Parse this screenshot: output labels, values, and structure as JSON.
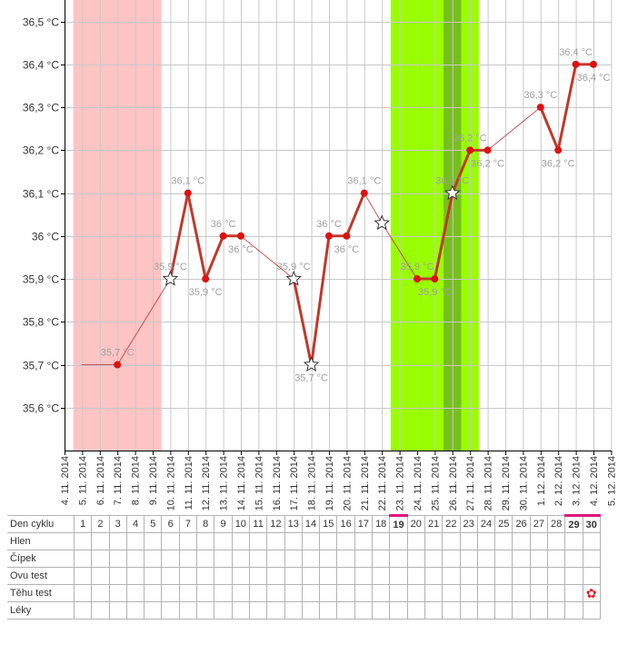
{
  "chart_data": {
    "type": "line",
    "x_labels": [
      "4. 11. 2014",
      "5. 11. 2014",
      "6. 11. 2014",
      "7. 11. 2014",
      "8. 11. 2014",
      "9. 11. 2014",
      "10. 11. 2014",
      "11. 11. 2014",
      "12. 11. 2014",
      "13. 11. 2014",
      "14. 11. 2014",
      "15. 11. 2014",
      "16. 11. 2014",
      "17. 11. 2014",
      "18. 11. 2014",
      "19. 11. 2014",
      "20. 11. 2014",
      "21. 11. 2014",
      "22. 11. 2014",
      "23. 11. 2014",
      "24. 11. 2014",
      "25. 11. 2014",
      "26. 11. 2014",
      "27. 11. 2014",
      "28. 11. 2014",
      "29. 11. 2014",
      "30. 11. 2014",
      "1. 12. 2014",
      "2. 12. 2014",
      "3. 12. 2014",
      "4. 12. 2014",
      "5. 12. 2014"
    ],
    "y_ticks": [
      {
        "value": 35.6,
        "label": "35,6 °C"
      },
      {
        "value": 35.7,
        "label": "35,7 °C"
      },
      {
        "value": 35.8,
        "label": "35,8 °C"
      },
      {
        "value": 35.9,
        "label": "35,9 °C"
      },
      {
        "value": 36.0,
        "label": "36 °C"
      },
      {
        "value": 36.1,
        "label": "36,1 °C"
      },
      {
        "value": 36.2,
        "label": "36,2 °C"
      },
      {
        "value": 36.3,
        "label": "36,3 °C"
      },
      {
        "value": 36.4,
        "label": "36,4 °C"
      },
      {
        "value": 36.5,
        "label": "36,5 °C"
      }
    ],
    "ylim": [
      35.5,
      36.55
    ],
    "grid": true,
    "points": [
      {
        "date": "5. 11. 2014",
        "y": 35.7,
        "marker": "none",
        "label": ""
      },
      {
        "date": "7. 11. 2014",
        "y": 35.7,
        "marker": "dot",
        "label": "35,7 °C",
        "label_pos": "above"
      },
      {
        "date": "10. 11. 2014",
        "y": 35.9,
        "marker": "star",
        "label": "35,9 °C",
        "label_pos": "above"
      },
      {
        "date": "11. 11. 2014",
        "y": 36.1,
        "marker": "dot",
        "label": "36,1 °C",
        "label_pos": "above"
      },
      {
        "date": "12. 11. 2014",
        "y": 35.9,
        "marker": "dot",
        "label": "35,9 °C",
        "label_pos": "below"
      },
      {
        "date": "13. 11. 2014",
        "y": 36.0,
        "marker": "dot",
        "label": "36 °C",
        "label_pos": "above"
      },
      {
        "date": "14. 11. 2014",
        "y": 36.0,
        "marker": "dot",
        "label": "36 °C",
        "label_pos": "below"
      },
      {
        "date": "17. 11. 2014",
        "y": 35.9,
        "marker": "star",
        "label": "35,9 °C",
        "label_pos": "above"
      },
      {
        "date": "18. 11. 2014",
        "y": 35.7,
        "marker": "star",
        "label": "35,7 °C",
        "label_pos": "below"
      },
      {
        "date": "19. 11. 2014",
        "y": 36.0,
        "marker": "dot",
        "label": "36 °C",
        "label_pos": "above"
      },
      {
        "date": "20. 11. 2014",
        "y": 36.0,
        "marker": "dot",
        "label": "36 °C",
        "label_pos": "below"
      },
      {
        "date": "21. 11. 2014",
        "y": 36.1,
        "marker": "dot",
        "label": "36,1 °C",
        "label_pos": "above"
      },
      {
        "date": "22. 11. 2014",
        "y": 36.03,
        "marker": "star",
        "label": "",
        "label_pos": "above"
      },
      {
        "date": "24. 11. 2014",
        "y": 35.9,
        "marker": "dot",
        "label": "35,9 °C",
        "label_pos": "above"
      },
      {
        "date": "25. 11. 2014",
        "y": 35.9,
        "marker": "dot",
        "label": "35,9 °C",
        "label_pos": "below"
      },
      {
        "date": "26. 11. 2014",
        "y": 36.1,
        "marker": "star",
        "label": "36,1 °C",
        "label_pos": "above"
      },
      {
        "date": "27. 11. 2014",
        "y": 36.2,
        "marker": "dot",
        "label": "36,2 °C",
        "label_pos": "above"
      },
      {
        "date": "28. 11. 2014",
        "y": 36.2,
        "marker": "dot",
        "label": "36,2 °C",
        "label_pos": "below"
      },
      {
        "date": "1. 12. 2014",
        "y": 36.3,
        "marker": "dot",
        "label": "36,3 °C",
        "label_pos": "above"
      },
      {
        "date": "2. 12. 2014",
        "y": 36.2,
        "marker": "dot",
        "label": "36,2 °C",
        "label_pos": "below"
      },
      {
        "date": "3. 12. 2014",
        "y": 36.4,
        "marker": "dot",
        "label": "36,4 °C",
        "label_pos": "above"
      },
      {
        "date": "4. 12. 2014",
        "y": 36.4,
        "marker": "dot",
        "label": "36,4 °C",
        "label_pos": "below"
      }
    ],
    "segments": [
      {
        "from": 0,
        "to": 1,
        "style": "dotted"
      },
      {
        "from": 1,
        "to": 2,
        "style": "dotted"
      },
      {
        "from": 2,
        "to": 3,
        "style": "solid"
      },
      {
        "from": 3,
        "to": 4,
        "style": "solid"
      },
      {
        "from": 4,
        "to": 5,
        "style": "solid"
      },
      {
        "from": 5,
        "to": 6,
        "style": "solid"
      },
      {
        "from": 6,
        "to": 7,
        "style": "dotted"
      },
      {
        "from": 7,
        "to": 8,
        "style": "solid"
      },
      {
        "from": 8,
        "to": 9,
        "style": "solid"
      },
      {
        "from": 9,
        "to": 10,
        "style": "solid"
      },
      {
        "from": 10,
        "to": 11,
        "style": "solid"
      },
      {
        "from": 11,
        "to": 12,
        "style": "dotted"
      },
      {
        "from": 12,
        "to": 13,
        "style": "dotted"
      },
      {
        "from": 13,
        "to": 14,
        "style": "solid"
      },
      {
        "from": 14,
        "to": 15,
        "style": "solid"
      },
      {
        "from": 15,
        "to": 16,
        "style": "solid"
      },
      {
        "from": 16,
        "to": 17,
        "style": "solid"
      },
      {
        "from": 17,
        "to": 18,
        "style": "dotted"
      },
      {
        "from": 18,
        "to": 19,
        "style": "solid"
      },
      {
        "from": 19,
        "to": 20,
        "style": "solid"
      },
      {
        "from": 20,
        "to": 21,
        "style": "solid"
      }
    ],
    "bands": [
      {
        "from": "5. 11. 2014",
        "to": "9. 11. 2014",
        "color": "#ffc4c4"
      },
      {
        "from": "23. 11. 2014",
        "to": "27. 11. 2014",
        "color": "#99ff00"
      },
      {
        "from": "26. 11. 2014",
        "to": "26. 11. 2014",
        "color": "#77bf1f"
      }
    ],
    "colors": {
      "line": "#c0392b",
      "dotted_line": "#c44040",
      "point": "#dd1111",
      "label": "#a0a0a0",
      "grid": "#c8c8c8",
      "axis": "#000000"
    }
  },
  "cycle_table": {
    "rows": [
      {
        "label": "Den cyklu",
        "cells": [
          "1",
          "2",
          "3",
          "4",
          "5",
          "6",
          "7",
          "8",
          "9",
          "10",
          "11",
          "12",
          "13",
          "14",
          "15",
          "16",
          "17",
          "18",
          "19",
          "20",
          "21",
          "22",
          "23",
          "24",
          "25",
          "26",
          "27",
          "28",
          "29",
          "30"
        ],
        "marked": [
          18,
          28,
          29
        ]
      },
      {
        "label": "Hlen",
        "cells": []
      },
      {
        "label": "Čípek",
        "cells": []
      },
      {
        "label": "Ovu test",
        "cells": []
      },
      {
        "label": "Těhu test",
        "cells": [],
        "icon_col": 29,
        "icon": "flower-icon",
        "icon_glyph": "✿"
      },
      {
        "label": "Léky",
        "cells": []
      }
    ],
    "marker_color": "#e0157f"
  }
}
